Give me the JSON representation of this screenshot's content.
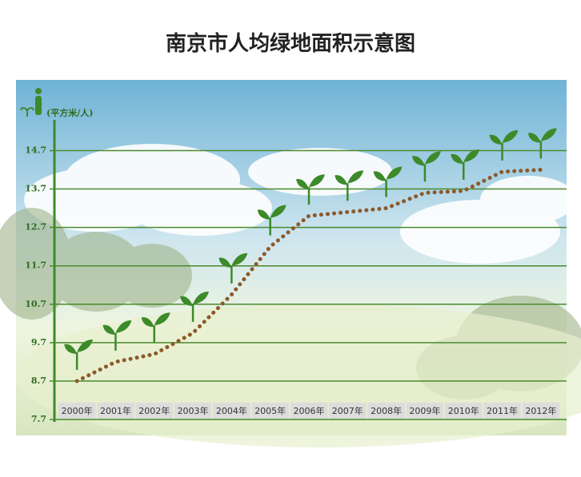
{
  "chart_data": {
    "type": "line",
    "title": "南京市人均绿地面积示意图",
    "y_unit": "(平方米/人)",
    "categories": [
      "2000年",
      "2001年",
      "2002年",
      "2003年",
      "2004年",
      "2005年",
      "2006年",
      "2007年",
      "2008年",
      "2009年",
      "2010年",
      "2011年",
      "2012年"
    ],
    "values": [
      8.7,
      9.2,
      9.4,
      9.95,
      10.95,
      12.2,
      13.0,
      13.1,
      13.2,
      13.6,
      13.65,
      14.15,
      14.2
    ],
    "color": "#8b5a2b",
    "ylim": [
      7.7,
      15.5
    ],
    "yticks": [
      7.7,
      8.7,
      9.7,
      10.7,
      11.7,
      12.7,
      13.7,
      14.7
    ],
    "grid": true
  }
}
